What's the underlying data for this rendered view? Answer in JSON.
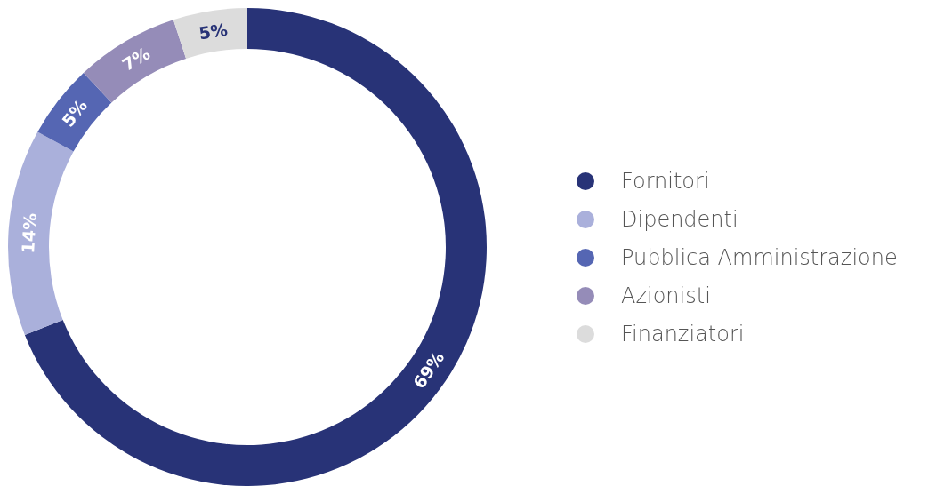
{
  "chart_data": {
    "type": "donut",
    "categories": [
      "Fornitori",
      "Dipendenti",
      "Pubblica Amministrazione",
      "Azionisti",
      "Finanziatori"
    ],
    "values": [
      69,
      14,
      5,
      7,
      5
    ],
    "colors": [
      "#283377",
      "#aab0db",
      "#5566b3",
      "#958cb8",
      "#dcdcdc"
    ],
    "value_labels": [
      "69%",
      "14%",
      "5%",
      "7%",
      "5%"
    ],
    "legend": "right"
  }
}
